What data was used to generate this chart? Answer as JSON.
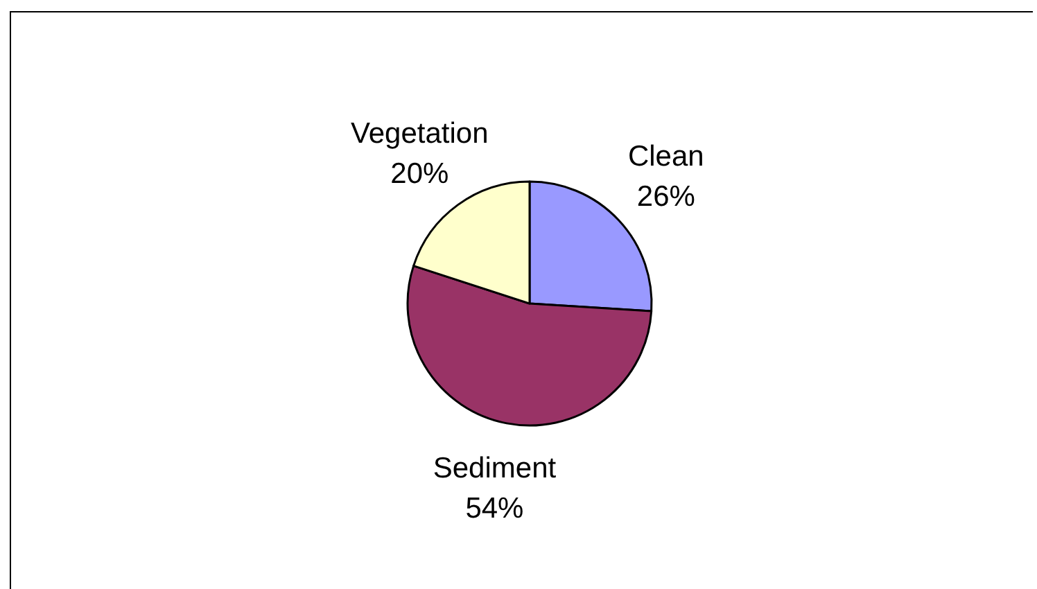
{
  "chart_data": {
    "type": "pie",
    "categories": [
      "Clean",
      "Sediment",
      "Vegetation"
    ],
    "values": [
      26,
      54,
      20
    ],
    "colors": [
      "#9999ff",
      "#993366",
      "#ffffcc"
    ],
    "value_labels": [
      "26%",
      "54%",
      "20%"
    ]
  }
}
